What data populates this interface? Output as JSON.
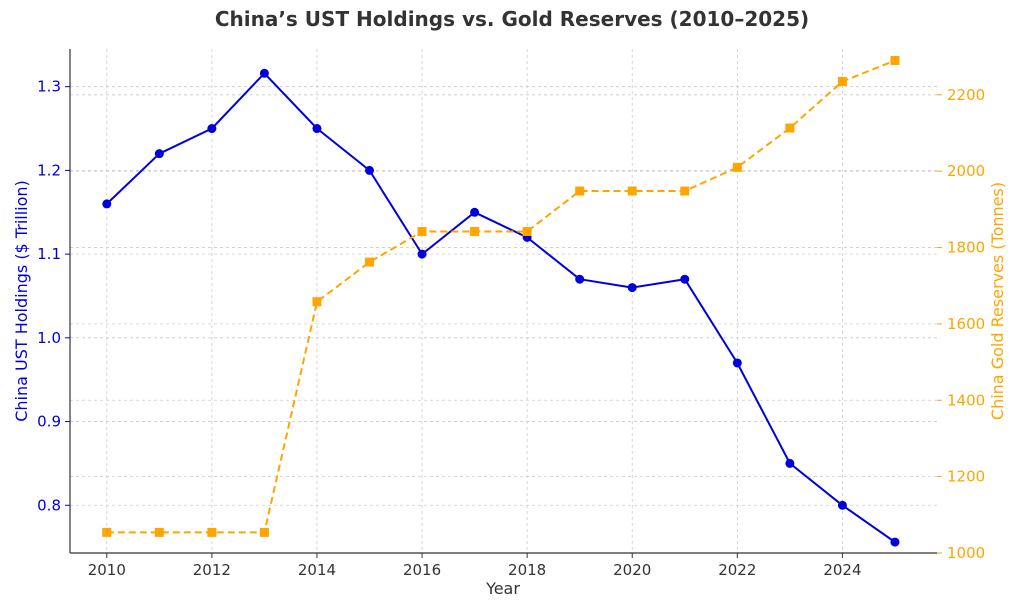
{
  "chart_data": {
    "type": "line",
    "title": "China’s UST Holdings vs. Gold Reserves (2010–2025)",
    "xlabel": "Year",
    "ylabel_left": "China UST Holdings ($ Trillion)",
    "ylabel_right": "China Gold Reserves (Tonnes)",
    "x": [
      2010,
      2011,
      2012,
      2013,
      2014,
      2015,
      2016,
      2017,
      2018,
      2019,
      2020,
      2021,
      2022,
      2023,
      2024,
      2025
    ],
    "xticks": [
      "2010",
      "2012",
      "2014",
      "2016",
      "2018",
      "2020",
      "2022",
      "2024"
    ],
    "xlim": [
      2009.3,
      2025.8
    ],
    "ylim_left": [
      0.743,
      1.345
    ],
    "yticks_left": [
      "0.8",
      "0.9",
      "1.0",
      "1.1",
      "1.2",
      "1.3"
    ],
    "ylim_right": [
      1000,
      2320
    ],
    "yticks_right": [
      "1000",
      "1200",
      "1400",
      "1600",
      "1800",
      "2000",
      "2200"
    ],
    "grid": true,
    "series": [
      {
        "axis": "left",
        "color": "#0000dd",
        "line_style": "solid",
        "marker": "circle",
        "values": [
          1.16,
          1.22,
          1.25,
          1.316,
          1.25,
          1.2,
          1.1,
          1.15,
          1.12,
          1.07,
          1.06,
          1.07,
          0.97,
          0.85,
          0.8,
          0.756
        ]
      },
      {
        "axis": "right",
        "color": "#ffa500",
        "line_style": "dashed",
        "marker": "square",
        "values": [
          1054,
          1054,
          1054,
          1054,
          1658,
          1762,
          1842,
          1842,
          1842,
          1948,
          1948,
          1948,
          2010,
          2113,
          2235,
          2290
        ]
      }
    ]
  }
}
